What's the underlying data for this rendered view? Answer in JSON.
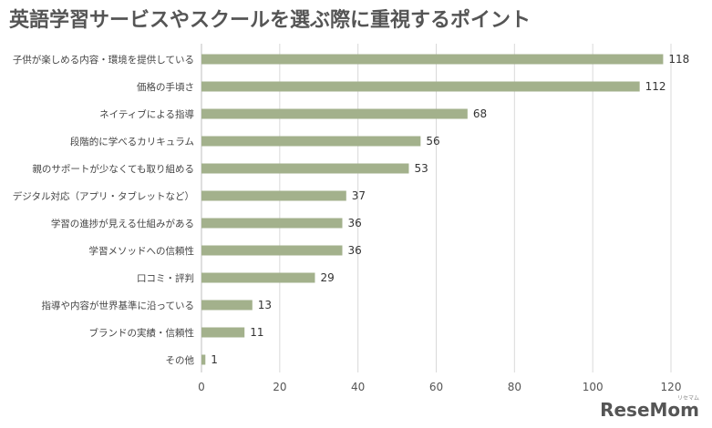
{
  "title": "英語学習サービスやスクールを選ぶ際に重視するポイント",
  "brand": {
    "name": "ReseMom",
    "ruby": "リセマム"
  },
  "colors": {
    "bar": "#a3b18c",
    "grid": "#d9d9d9",
    "axis": "#bfbfbf"
  },
  "chart_data": {
    "type": "bar",
    "orientation": "horizontal",
    "title": "英語学習サービスやスクールを選ぶ際に重視するポイント",
    "categories": [
      "子供が楽しめる内容・環境を提供している",
      "価格の手頃さ",
      "ネイティブによる指導",
      "段階的に学べるカリキュラム",
      "親のサポートが少なくても取り組める",
      "デジタル対応（アプリ・タブレットなど）",
      "学習の進捗が見える仕組みがある",
      "学習メソッドへの信頼性",
      "口コミ・評判",
      "指導や内容が世界基準に沿っている",
      "ブランドの実績・信頼性",
      "その他"
    ],
    "values": [
      118,
      112,
      68,
      56,
      53,
      37,
      36,
      36,
      29,
      13,
      11,
      1
    ],
    "xlim": [
      0,
      120
    ],
    "xticks": [
      0,
      20,
      40,
      60,
      80,
      100,
      120
    ],
    "grid": true,
    "legend": "none"
  }
}
